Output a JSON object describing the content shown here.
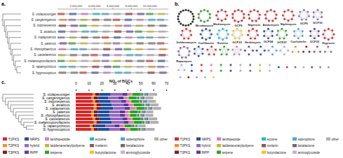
{
  "panel_labels": [
    "a.",
    "b.",
    "c."
  ],
  "alignment": {
    "species": [
      "S. violaceusniger",
      "S. cangkringensis",
      "S. indonesiensis",
      "S. asiaticus",
      "S. malaysiensis",
      "S. yatensis",
      "S. rhizosphaericus",
      "S. castelarensis",
      "S. melanosporofaciens",
      "S. rapamycinicus",
      "S. hygroscopicus"
    ],
    "xlim": [
      0,
      12000000
    ],
    "xticks": [
      {
        "value": 2000000,
        "label": "2,000,000"
      },
      {
        "value": 4000000,
        "label": "4,000,000"
      },
      {
        "value": 6000000,
        "label": "6,000,000"
      },
      {
        "value": 8000000,
        "label": "8,000,000"
      },
      {
        "value": 10000000,
        "label": "10,000,000"
      }
    ]
  },
  "network": {
    "clusters": [
      {
        "size": 18,
        "color": "#222222"
      },
      {
        "label": "Mendamycin",
        "size": 10,
        "category": "terpene"
      },
      {
        "label": "Mediomycin",
        "size": 8,
        "category": "T1PKS"
      },
      {
        "label": "GCF5",
        "size": 10,
        "category": "T1PKS"
      },
      {
        "label": "Nigericin",
        "size": 9,
        "category": "T1PKS"
      },
      {
        "label": "Azalomycin",
        "size": 9,
        "category": "T1PKS"
      },
      {
        "label": "Niphimycin",
        "size": 8,
        "category": "T1PKS"
      },
      {
        "label": "GCF6",
        "size": 7,
        "category": "hybrid"
      },
      {
        "label": "GCF15",
        "size": 6,
        "category": "hybrid"
      },
      {
        "label": "Geldanamycin",
        "size": 7,
        "category": "T1PKS"
      },
      {
        "label": "Coelibactin",
        "size": 8,
        "category": "NRPS"
      },
      {
        "label": "Ectoine",
        "size": 8,
        "category": "ectoine"
      },
      {
        "label": "GCF23",
        "size": 7,
        "category": "butyrolactone"
      },
      {
        "label": "Herbimycin",
        "size": 7,
        "category": "T1PKS"
      },
      {
        "label": "GCF24",
        "size": 6,
        "category": "NRPS"
      },
      {
        "label": "GCF27",
        "size": 7,
        "category": "terpene"
      },
      {
        "label": "Coelichelin",
        "size": 6,
        "category": "siderophore"
      },
      {
        "label": "GCF33",
        "size": 6,
        "category": "RiPP"
      },
      {
        "label": "Hygrocin",
        "size": 8,
        "category": "T1PKS"
      },
      {
        "label": "Rapamycin",
        "size": 9,
        "category": "hybrid"
      },
      {
        "size": 6,
        "category": "NRPS"
      },
      {
        "size": 5,
        "category": "T1PKS"
      },
      {
        "size": 5,
        "category": "terpene"
      },
      {
        "size": 5,
        "category": "lanthipeptide"
      },
      {
        "size": 4,
        "category": "RiPP"
      },
      {
        "size": 4,
        "category": "NRPS"
      },
      {
        "size": 4,
        "category": "siderophore"
      },
      {
        "size": 4,
        "category": "other"
      },
      {
        "size": 3,
        "category": "T2PKS"
      },
      {
        "size": 3,
        "category": "T3PKS"
      },
      {
        "size": 3,
        "category": "melanin"
      },
      {
        "size": 3,
        "category": "hybrid"
      },
      {
        "size": 3,
        "category": "other"
      },
      {
        "size": 2,
        "category": "NRPS"
      },
      {
        "size": 2,
        "category": "T1PKS"
      },
      {
        "size": 2,
        "category": "lanthipeptide"
      },
      {
        "size": 2,
        "category": "terpene"
      },
      {
        "size": 2,
        "category": "RiPP"
      },
      {
        "size": 2,
        "category": "other"
      },
      {
        "size": 2,
        "category": "betalactone"
      },
      {
        "size": 2,
        "category": "ladderane/arylpolyene"
      },
      {
        "size": 2,
        "category": "aminoglycoside"
      },
      {
        "size": 1,
        "category": "NRPS"
      },
      {
        "size": 1,
        "category": "T1PKS"
      },
      {
        "size": 1,
        "category": "terpene"
      },
      {
        "size": 1,
        "category": "other"
      },
      {
        "size": 1,
        "category": "RiPP"
      },
      {
        "size": 1,
        "category": "hybrid"
      },
      {
        "size": 1,
        "category": "siderophore"
      },
      {
        "size": 1,
        "category": "other"
      },
      {
        "size": 1,
        "category": "T3PKS"
      },
      {
        "size": 1,
        "category": "lanthipeptide"
      },
      {
        "size": 1,
        "category": "other"
      },
      {
        "size": 1,
        "category": "butyrolactone"
      }
    ]
  },
  "chart_data": {
    "type": "bar",
    "orientation": "horizontal",
    "stacked": true,
    "legend": "bottom",
    "xlabel": "NO. of BGCs",
    "categories": [
      "S. violaceusniger",
      "S. cangkringensis",
      "S. indonesiensis",
      "S. asiaticus",
      "S. malaysiensis",
      "S. yatensis",
      "S. rhizosphaericus",
      "S. castelarensis",
      "S. melanosporofaciens",
      "S. rapamycinicus",
      "S. hygroscopicus"
    ],
    "xlim": [
      0,
      70
    ],
    "xticks": [
      0,
      10,
      20,
      30,
      40,
      50,
      60,
      70
    ],
    "series": [
      {
        "name": "T1PKS",
        "color": "#d62728",
        "values": [
          13,
          12,
          13,
          14,
          14,
          12,
          12,
          13,
          14,
          11,
          12
        ]
      },
      {
        "name": "T2PKS",
        "color": "#f28e2b",
        "values": [
          2,
          2,
          2,
          2,
          2,
          2,
          2,
          2,
          2,
          2,
          2
        ]
      },
      {
        "name": "T3PKS",
        "color": "#8c1a1a",
        "values": [
          3,
          3,
          3,
          3,
          3,
          3,
          3,
          3,
          3,
          2,
          3
        ]
      },
      {
        "name": "NRPS",
        "color": "#1f4e9c",
        "values": [
          9,
          8,
          9,
          9,
          10,
          9,
          9,
          9,
          9,
          8,
          9
        ]
      },
      {
        "name": "hybrid",
        "color": "#9467bd",
        "values": [
          9,
          8,
          8,
          9,
          9,
          8,
          8,
          9,
          9,
          7,
          8
        ]
      },
      {
        "name": "RiPP",
        "color": "#5b3a99",
        "values": [
          4,
          4,
          4,
          4,
          4,
          4,
          4,
          4,
          4,
          4,
          4
        ]
      },
      {
        "name": "lanthipeptide",
        "color": "#e377c2",
        "values": [
          3,
          3,
          3,
          3,
          4,
          3,
          3,
          3,
          3,
          3,
          3
        ]
      },
      {
        "name": "ladderane/arylpolyene",
        "color": "#bcbd22",
        "values": [
          1,
          1,
          1,
          1,
          1,
          1,
          1,
          1,
          1,
          1,
          1
        ]
      },
      {
        "name": "terpene",
        "color": "#2ca02c",
        "values": [
          6,
          6,
          6,
          6,
          6,
          6,
          5,
          6,
          6,
          5,
          6
        ]
      },
      {
        "name": "ectoine",
        "color": "#17becf",
        "values": [
          1,
          1,
          1,
          1,
          1,
          1,
          1,
          1,
          1,
          1,
          1
        ]
      },
      {
        "name": "melanin",
        "color": "#8c564b",
        "values": [
          1,
          1,
          1,
          1,
          1,
          1,
          1,
          1,
          1,
          1,
          1
        ]
      },
      {
        "name": "butyrolactone",
        "color": "#f5c518",
        "values": [
          1,
          1,
          1,
          1,
          1,
          1,
          1,
          1,
          1,
          1,
          1
        ]
      },
      {
        "name": "siderophore",
        "color": "#4fa3d9",
        "values": [
          2,
          2,
          2,
          2,
          2,
          2,
          2,
          2,
          2,
          2,
          2
        ]
      },
      {
        "name": "betalactone",
        "color": "#6b6b6b",
        "values": [
          1,
          1,
          1,
          1,
          1,
          1,
          1,
          1,
          1,
          0,
          1
        ]
      },
      {
        "name": "aminoglycoside",
        "color": "#c5b0d5",
        "values": [
          1,
          1,
          1,
          1,
          1,
          1,
          1,
          1,
          1,
          1,
          1
        ]
      },
      {
        "name": "other",
        "color": "#b0b0b0",
        "values": [
          6,
          6,
          6,
          6,
          6,
          5,
          6,
          6,
          6,
          5,
          6
        ]
      }
    ]
  }
}
